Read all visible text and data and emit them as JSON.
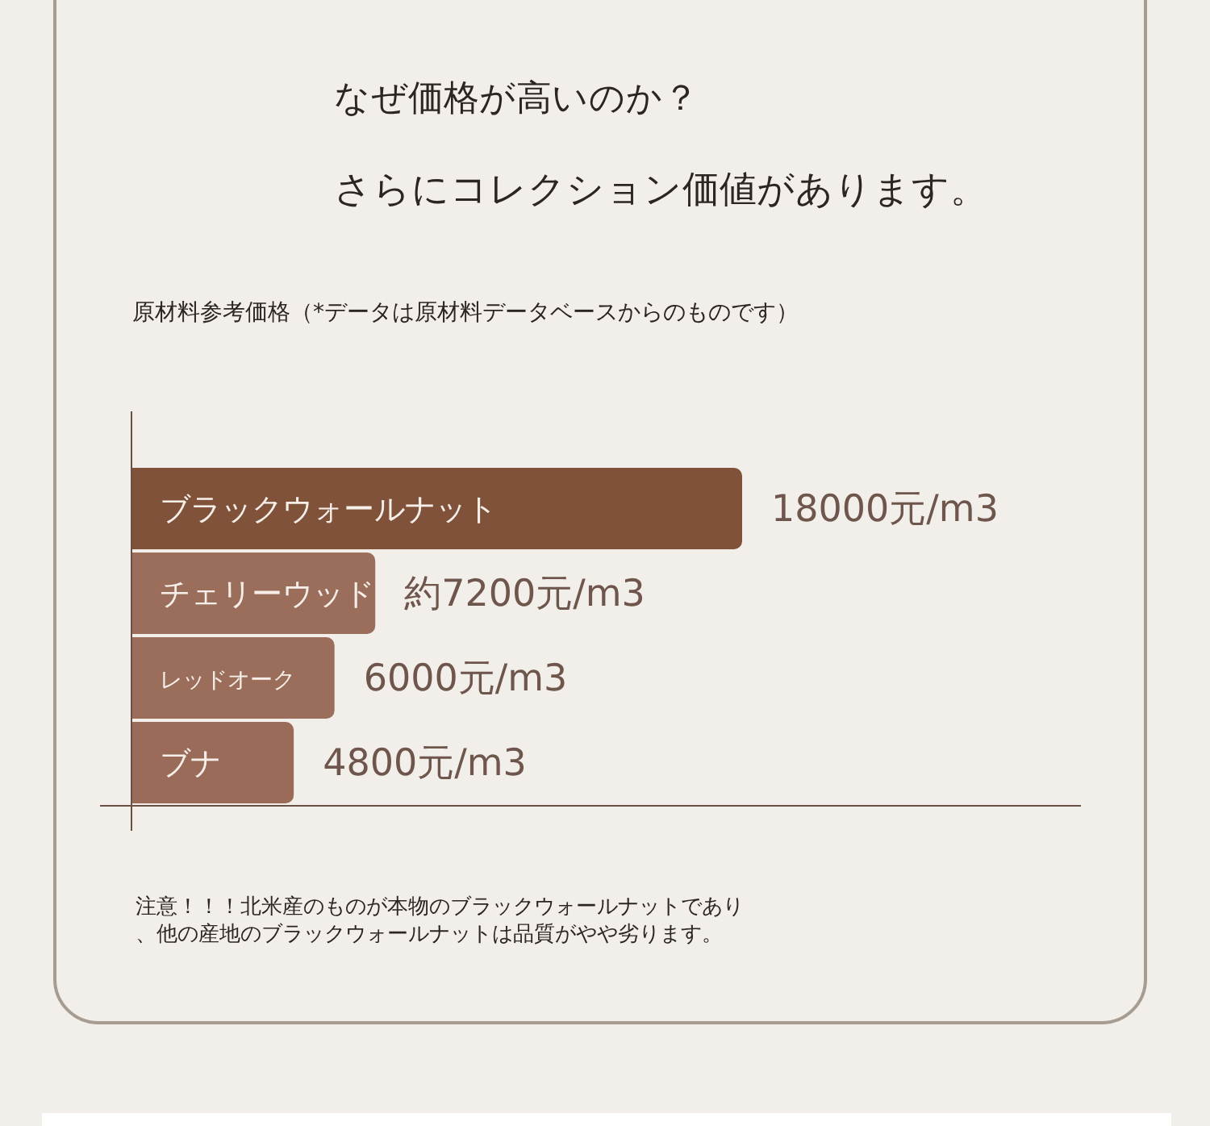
{
  "chart_data": {
    "type": "bar",
    "orientation": "horizontal",
    "title": "なぜ価格が高いのか？",
    "subtitle": "さらにコレクション価値があります。",
    "annotations": [
      "原材料参考価格（*データは原材料データベースからのものです）",
      "注意！！！北米産のものが本物のブラックウォールナットであり、他の産地のブラックウォールナットは品質がやや劣ります。"
    ],
    "categories": [
      "ブラックウォールナット",
      "チェリーウッド",
      "レッドオーク",
      "ブナ"
    ],
    "values": [
      18000,
      7200,
      6000,
      4800
    ],
    "value_labels": [
      "18000元/m3",
      "約7200元/m3",
      "6000元/m3",
      "4800元/m3"
    ],
    "colors": [
      "#7f5239",
      "#9b6d5b",
      "#9b6d5b",
      "#9a6b58"
    ],
    "tick_labels": "y"
  }
}
